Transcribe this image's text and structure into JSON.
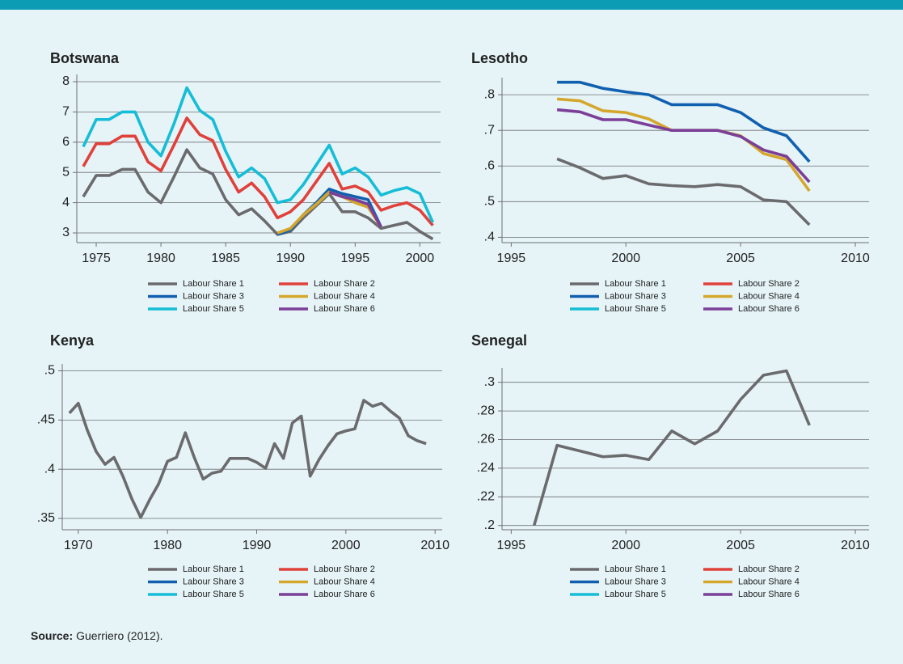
{
  "chart_data": [
    {
      "type": "line",
      "title": "Botswana",
      "x": [
        1974,
        1975,
        1976,
        1977,
        1978,
        1979,
        1980,
        1981,
        1982,
        1983,
        1984,
        1985,
        1986,
        1987,
        1988,
        1989,
        1990,
        1991,
        1992,
        1993,
        1994,
        1995,
        1996,
        1997,
        1998,
        1999,
        2000,
        2001
      ],
      "series": [
        {
          "name": "Labour Share 1",
          "color": "#6b6b6e",
          "values": [
            4.2,
            4.9,
            4.9,
            5.1,
            5.1,
            4.35,
            4.0,
            4.85,
            5.75,
            5.15,
            4.95,
            4.1,
            3.6,
            3.8,
            3.4,
            2.95,
            3.05,
            3.5,
            3.9,
            4.3,
            3.7,
            3.7,
            3.5,
            3.15,
            3.25,
            3.35,
            3.05,
            2.8
          ]
        },
        {
          "name": "Labour Share 2",
          "color": "#e0413a",
          "values": [
            5.2,
            5.95,
            5.95,
            6.2,
            6.2,
            5.35,
            5.05,
            5.9,
            6.8,
            6.25,
            6.05,
            5.1,
            4.35,
            4.65,
            4.2,
            3.5,
            3.7,
            4.1,
            4.7,
            5.3,
            4.45,
            4.55,
            4.35,
            3.75,
            3.9,
            4.0,
            3.75,
            3.25
          ]
        },
        {
          "name": "Labour Share 3",
          "color": "#1160b0",
          "values": [
            null,
            null,
            null,
            null,
            null,
            null,
            null,
            null,
            null,
            null,
            null,
            null,
            null,
            null,
            null,
            2.95,
            3.1,
            3.6,
            4.0,
            4.45,
            4.3,
            4.2,
            4.1,
            3.2,
            null,
            null,
            null,
            null
          ]
        },
        {
          "name": "Labour Share 4",
          "color": "#d4a72c",
          "values": [
            null,
            null,
            null,
            null,
            null,
            null,
            null,
            null,
            null,
            null,
            null,
            null,
            null,
            null,
            null,
            3.0,
            3.15,
            3.6,
            3.95,
            4.35,
            4.2,
            4.0,
            3.85,
            3.2,
            null,
            null,
            null,
            null
          ]
        },
        {
          "name": "Labour Share 5",
          "color": "#16bdd6",
          "values": [
            5.85,
            6.75,
            6.75,
            7.0,
            7.0,
            6.0,
            5.55,
            6.6,
            7.8,
            7.05,
            6.75,
            5.7,
            4.85,
            5.15,
            4.8,
            4.0,
            4.1,
            4.6,
            5.25,
            5.9,
            4.95,
            5.15,
            4.85,
            4.25,
            4.4,
            4.5,
            4.3,
            3.35
          ]
        },
        {
          "name": "Labour Share 6",
          "color": "#7b3f98",
          "values": [
            null,
            null,
            null,
            null,
            null,
            null,
            null,
            null,
            null,
            null,
            null,
            null,
            null,
            null,
            null,
            null,
            null,
            null,
            null,
            4.35,
            4.2,
            4.1,
            3.95,
            3.2,
            null,
            null,
            null,
            null
          ]
        }
      ],
      "xlim": [
        1973.5,
        2001.6
      ],
      "ylim": [
        2.68,
        8.24
      ],
      "xticks": [
        1975,
        1980,
        1985,
        1990,
        1995,
        2000
      ],
      "yticks": [
        3,
        4,
        5,
        6,
        7,
        8
      ],
      "grid": true
    },
    {
      "type": "line",
      "title": "Lesotho",
      "x": [
        1997,
        1998,
        1999,
        2000,
        2001,
        2002,
        2003,
        2004,
        2005,
        2006,
        2007,
        2008
      ],
      "series": [
        {
          "name": "Labour Share 1",
          "color": "#6b6b6e",
          "values": [
            0.62,
            0.595,
            0.565,
            0.573,
            0.55,
            0.545,
            0.542,
            0.548,
            0.542,
            0.505,
            0.5,
            0.435
          ]
        },
        {
          "name": "Labour Share 2",
          "color": "#e0413a",
          "values": [
            null,
            null,
            null,
            null,
            null,
            null,
            null,
            null,
            null,
            null,
            null,
            null
          ]
        },
        {
          "name": "Labour Share 3",
          "color": "#1160b0",
          "values": [
            0.835,
            0.835,
            0.818,
            0.808,
            0.8,
            0.772,
            0.772,
            0.772,
            0.75,
            0.707,
            0.685,
            0.612
          ]
        },
        {
          "name": "Labour Share 4",
          "color": "#d4a72c",
          "values": [
            0.788,
            0.783,
            0.755,
            0.75,
            0.732,
            0.7,
            0.7,
            0.7,
            0.685,
            0.635,
            0.618,
            0.53
          ]
        },
        {
          "name": "Labour Share 5",
          "color": "#16bdd6",
          "values": [
            null,
            null,
            null,
            null,
            null,
            null,
            null,
            null,
            null,
            null,
            null,
            null
          ]
        },
        {
          "name": "Labour Share 6",
          "color": "#7b3f98",
          "values": [
            0.758,
            0.752,
            0.73,
            0.73,
            0.715,
            0.7,
            0.7,
            0.7,
            0.683,
            0.645,
            0.627,
            0.555
          ]
        }
      ],
      "xlim": [
        1994.6,
        2010.6
      ],
      "ylim": [
        0.385,
        0.848
      ],
      "xticks": [
        1995,
        2000,
        2005,
        2010
      ],
      "yticks": [
        {
          "value": 0.4,
          "label": ".4"
        },
        {
          "value": 0.5,
          "label": ".5"
        },
        {
          "value": 0.6,
          "label": ".6"
        },
        {
          "value": 0.7,
          "label": ".7"
        },
        {
          "value": 0.8,
          "label": ".8"
        }
      ],
      "grid": true
    },
    {
      "type": "line",
      "title": "Kenya",
      "x": [
        1969,
        1970,
        1971,
        1972,
        1973,
        1974,
        1975,
        1976,
        1977,
        1978,
        1979,
        1980,
        1981,
        1982,
        1983,
        1984,
        1985,
        1986,
        1987,
        1988,
        1989,
        1990,
        1991,
        1992,
        1993,
        1994,
        1995,
        1996,
        1997,
        1998,
        1999,
        2000,
        2001,
        2002,
        2003,
        2004,
        2005,
        2006,
        2007,
        2008,
        2009
      ],
      "series": [
        {
          "name": "Labour Share 1",
          "color": "#6b6b6e",
          "values": [
            0.457,
            0.467,
            0.44,
            0.418,
            0.405,
            0.412,
            0.393,
            0.37,
            0.351,
            0.369,
            0.385,
            0.408,
            0.412,
            0.437,
            0.412,
            0.39,
            0.396,
            0.398,
            0.411,
            0.411,
            0.411,
            0.407,
            0.401,
            0.426,
            0.411,
            0.447,
            0.454,
            0.393,
            0.41,
            0.424,
            0.436,
            0.439,
            0.441,
            0.47,
            0.464,
            0.467,
            0.459,
            0.452,
            0.434,
            0.429,
            0.426
          ]
        },
        {
          "name": "Labour Share 2",
          "color": "#e0413a",
          "values": [
            null,
            null,
            null,
            null,
            null,
            null,
            null,
            null,
            null,
            null,
            null,
            null,
            null,
            null,
            null,
            null,
            null,
            null,
            null,
            null,
            null,
            null,
            null,
            null,
            null,
            null,
            null,
            null,
            null,
            null,
            null,
            null,
            null,
            null,
            null,
            null,
            null,
            null,
            null,
            null,
            null
          ]
        },
        {
          "name": "Labour Share 3",
          "color": "#1160b0",
          "values": [
            null,
            null,
            null,
            null,
            null,
            null,
            null,
            null,
            null,
            null,
            null,
            null,
            null,
            null,
            null,
            null,
            null,
            null,
            null,
            null,
            null,
            null,
            null,
            null,
            null,
            null,
            null,
            null,
            null,
            null,
            null,
            null,
            null,
            null,
            null,
            null,
            null,
            null,
            null,
            null,
            null
          ]
        },
        {
          "name": "Labour Share 4",
          "color": "#d4a72c",
          "values": [
            null,
            null,
            null,
            null,
            null,
            null,
            null,
            null,
            null,
            null,
            null,
            null,
            null,
            null,
            null,
            null,
            null,
            null,
            null,
            null,
            null,
            null,
            null,
            null,
            null,
            null,
            null,
            null,
            null,
            null,
            null,
            null,
            null,
            null,
            null,
            null,
            null,
            null,
            null,
            null,
            null
          ]
        },
        {
          "name": "Labour Share 5",
          "color": "#16bdd6",
          "values": [
            null,
            null,
            null,
            null,
            null,
            null,
            null,
            null,
            null,
            null,
            null,
            null,
            null,
            null,
            null,
            null,
            null,
            null,
            null,
            null,
            null,
            null,
            null,
            null,
            null,
            null,
            null,
            null,
            null,
            null,
            null,
            null,
            null,
            null,
            null,
            null,
            null,
            null,
            null,
            null,
            null
          ]
        },
        {
          "name": "Labour Share 6",
          "color": "#7b3f98",
          "values": [
            null,
            null,
            null,
            null,
            null,
            null,
            null,
            null,
            null,
            null,
            null,
            null,
            null,
            null,
            null,
            null,
            null,
            null,
            null,
            null,
            null,
            null,
            null,
            null,
            null,
            null,
            null,
            null,
            null,
            null,
            null,
            null,
            null,
            null,
            null,
            null,
            null,
            null,
            null,
            null,
            null
          ]
        }
      ],
      "xlim": [
        1968.2,
        2010.8
      ],
      "ylim": [
        0.3385,
        0.507
      ],
      "xticks": [
        1970,
        1980,
        1990,
        2000,
        2010
      ],
      "yticks": [
        {
          "value": 0.35,
          "label": ".35"
        },
        {
          "value": 0.4,
          "label": ".4"
        },
        {
          "value": 0.45,
          "label": ".45"
        },
        {
          "value": 0.5,
          "label": ".5"
        }
      ],
      "grid": true
    },
    {
      "type": "line",
      "title": "Senegal",
      "x": [
        1996,
        1997,
        1998,
        1999,
        2000,
        2001,
        2002,
        2003,
        2004,
        2005,
        2006,
        2007,
        2008
      ],
      "series": [
        {
          "name": "Labour Share 1",
          "color": "#6b6b6e",
          "values": [
            0.2,
            0.256,
            0.252,
            0.248,
            0.249,
            0.246,
            0.266,
            0.257,
            0.266,
            0.288,
            0.305,
            0.308,
            0.27
          ]
        },
        {
          "name": "Labour Share 2",
          "color": "#e0413a",
          "values": [
            null,
            null,
            null,
            null,
            null,
            null,
            null,
            null,
            null,
            null,
            null,
            null,
            null
          ]
        },
        {
          "name": "Labour Share 3",
          "color": "#1160b0",
          "values": [
            null,
            null,
            null,
            null,
            null,
            null,
            null,
            null,
            null,
            null,
            null,
            null,
            null
          ]
        },
        {
          "name": "Labour Share 4",
          "color": "#d4a72c",
          "values": [
            null,
            null,
            null,
            null,
            null,
            null,
            null,
            null,
            null,
            null,
            null,
            null,
            null
          ]
        },
        {
          "name": "Labour Share 5",
          "color": "#16bdd6",
          "values": [
            null,
            null,
            null,
            null,
            null,
            null,
            null,
            null,
            null,
            null,
            null,
            null,
            null
          ]
        },
        {
          "name": "Labour Share 6",
          "color": "#7b3f98",
          "values": [
            null,
            null,
            null,
            null,
            null,
            null,
            null,
            null,
            null,
            null,
            null,
            null,
            null
          ]
        }
      ],
      "xlim": [
        1994.6,
        2010.6
      ],
      "ylim": [
        0.197,
        0.31
      ],
      "xticks": [
        1995,
        2000,
        2005,
        2010
      ],
      "yticks": [
        {
          "value": 0.2,
          "label": ".2"
        },
        {
          "value": 0.22,
          "label": ".22"
        },
        {
          "value": 0.24,
          "label": ".24"
        },
        {
          "value": 0.26,
          "label": ".26"
        },
        {
          "value": 0.28,
          "label": ".28"
        },
        {
          "value": 0.3,
          "label": ".3"
        }
      ],
      "grid": true
    }
  ],
  "source": {
    "label": "Source:",
    "text": "Guerriero (2012)."
  }
}
